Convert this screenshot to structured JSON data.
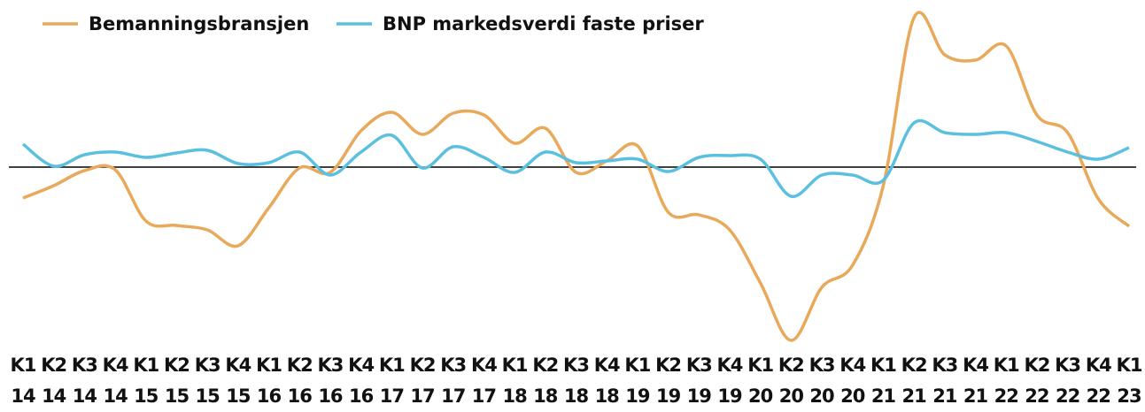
{
  "chart_data": {
    "type": "line",
    "categories": [
      "K1 14",
      "K2 14",
      "K3 14",
      "K4 14",
      "K1 15",
      "K2 15",
      "K3 15",
      "K4 15",
      "K1 16",
      "K2 16",
      "K3 16",
      "K4 16",
      "K1 17",
      "K2 17",
      "K3 17",
      "K4 17",
      "K1 18",
      "K2 18",
      "K3 18",
      "K4 18",
      "K1 19",
      "K2 19",
      "K3 19",
      "K4 19",
      "K1 20",
      "K2 20",
      "K3 20",
      "K4 20",
      "K1 21",
      "K2 21",
      "K3 21",
      "K4 21",
      "K1 22",
      "K2 22",
      "K3 22",
      "K4 22",
      "K1 23"
    ],
    "series": [
      {
        "name": "Bemanningsbransjen",
        "color": "#e8a95b",
        "values": [
          -3.5,
          -2.1,
          -0.4,
          -0.3,
          -6.1,
          -6.6,
          -7.1,
          -8.9,
          -4.6,
          -0.1,
          -0.6,
          4.1,
          6.2,
          3.7,
          6.1,
          5.9,
          2.7,
          4.4,
          -0.6,
          0.7,
          2.4,
          -5.1,
          -5.4,
          -7.1,
          -13.1,
          -19.6,
          -13.6,
          -11.1,
          -2.1,
          16.9,
          12.7,
          12.1,
          13.7,
          5.9,
          3.9,
          -3.6,
          -6.7
        ]
      },
      {
        "name": "BNP markedsverdi faste priser",
        "color": "#5bc0e0",
        "values": [
          2.6,
          0.1,
          1.4,
          1.7,
          1.1,
          1.6,
          1.9,
          0.4,
          0.5,
          1.7,
          -0.9,
          1.7,
          3.6,
          -0.1,
          2.3,
          1.1,
          -0.6,
          1.7,
          0.5,
          0.7,
          0.9,
          -0.5,
          1.1,
          1.3,
          0.9,
          -3.3,
          -0.9,
          -0.9,
          -1.5,
          5.0,
          3.9,
          3.7,
          3.9,
          2.9,
          1.7,
          0.9,
          2.2
        ]
      }
    ],
    "ylim": [
      -20.1,
      18.9
    ],
    "baseline": 0,
    "legend": "top-left"
  }
}
